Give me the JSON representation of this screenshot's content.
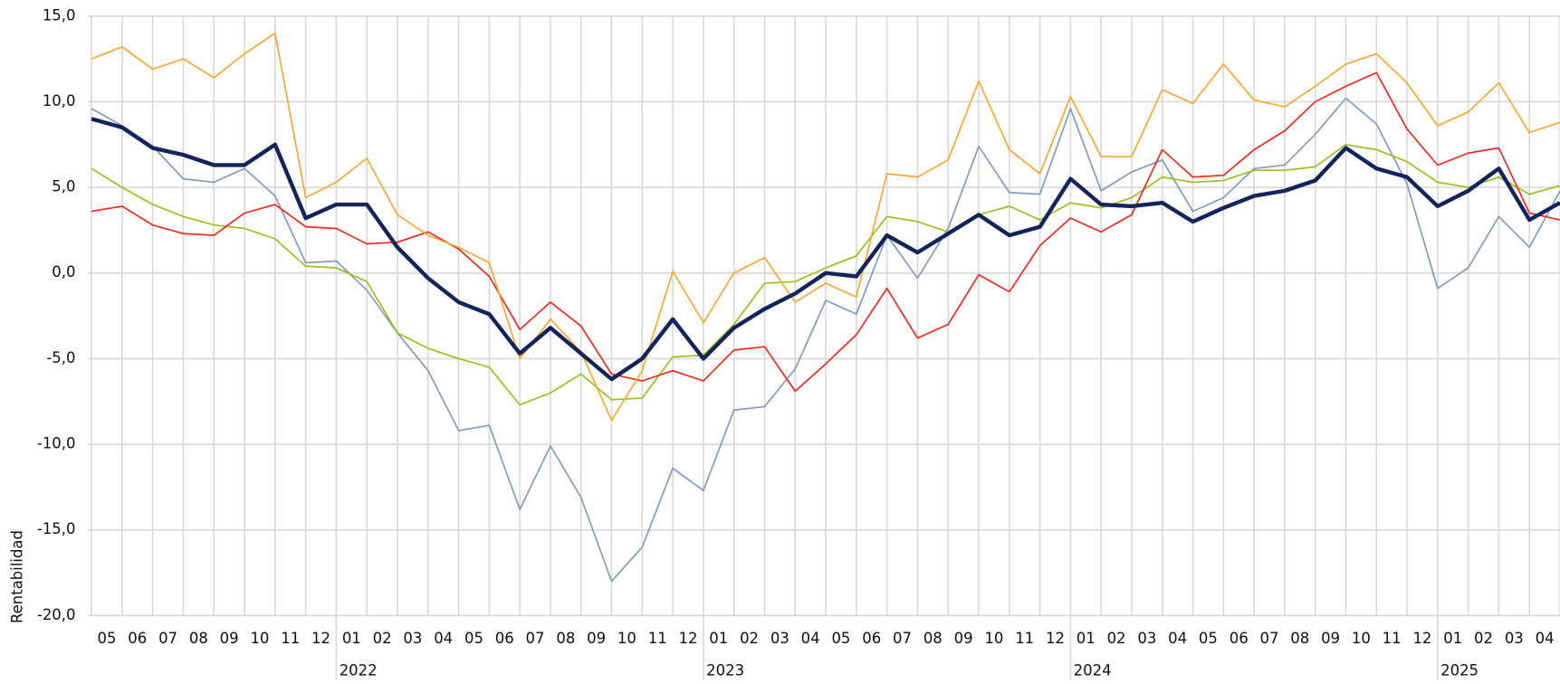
{
  "chart_data": {
    "type": "line",
    "y_label": "Rentabilidad",
    "categories": [
      "05",
      "06",
      "07",
      "08",
      "09",
      "10",
      "11",
      "12",
      "01",
      "02",
      "03",
      "04",
      "05",
      "06",
      "07",
      "08",
      "09",
      "10",
      "11",
      "12",
      "01",
      "02",
      "03",
      "04",
      "05",
      "06",
      "07",
      "08",
      "09",
      "10",
      "11",
      "12",
      "01",
      "02",
      "03",
      "04",
      "05",
      "06",
      "07",
      "08",
      "09",
      "10",
      "11",
      "12",
      "01",
      "02",
      "03",
      "04",
      null
    ],
    "years": [
      "2022",
      "2023",
      "2024",
      "2025"
    ],
    "ylim": [
      -20,
      15
    ],
    "yticks": [
      {
        "value": -20,
        "label": "-20,0"
      },
      {
        "value": -15,
        "label": "-15,0"
      },
      {
        "value": -10,
        "label": "-10,0"
      },
      {
        "value": -5,
        "label": "-5,0"
      },
      {
        "value": 0,
        "label": "0,0"
      },
      {
        "value": 5,
        "label": "5,0"
      },
      {
        "value": 10,
        "label": "10,0"
      },
      {
        "value": 15,
        "label": "15,0"
      }
    ],
    "grid": true,
    "series": [
      {
        "color": "#7f9abd",
        "width": 1.5,
        "values": [
          9.6,
          8.6,
          7.4,
          5.5,
          5.3,
          6.1,
          4.5,
          0.6,
          0.7,
          -1.0,
          -3.5,
          -5.7,
          -9.2,
          -8.9,
          -13.8,
          -10.1,
          -13.1,
          -18.0,
          -16.0,
          -11.4,
          -12.7,
          -8.0,
          -7.8,
          -5.6,
          -1.6,
          -2.4,
          2.2,
          -0.3,
          2.6,
          7.4,
          4.7,
          4.6,
          9.6,
          4.8,
          5.9,
          6.6,
          3.6,
          4.4,
          6.1,
          6.3,
          8.1,
          10.2,
          8.7,
          5.2,
          -0.9,
          0.3,
          3.3,
          1.5,
          4.8
        ]
      },
      {
        "color": "#9cbd1c",
        "width": 1.5,
        "values": [
          6.1,
          5.0,
          4.0,
          3.3,
          2.8,
          2.6,
          2.0,
          0.4,
          0.3,
          -0.5,
          -3.5,
          -4.4,
          -5.0,
          -5.5,
          -7.7,
          -7.0,
          -5.9,
          -7.4,
          -7.3,
          -4.9,
          -4.8,
          -3.0,
          -0.6,
          -0.5,
          0.3,
          1.0,
          3.3,
          3.0,
          2.4,
          3.4,
          3.9,
          3.1,
          4.1,
          3.8,
          4.4,
          5.6,
          5.3,
          5.4,
          6.0,
          6.0,
          6.2,
          7.5,
          7.2,
          6.5,
          5.3,
          5.0,
          5.6,
          4.6,
          5.1
        ]
      },
      {
        "color": "#f0251c",
        "width": 1.5,
        "values": [
          3.6,
          3.9,
          2.8,
          2.3,
          2.2,
          3.5,
          4.0,
          2.7,
          2.6,
          1.7,
          1.8,
          2.4,
          1.4,
          -0.2,
          -3.3,
          -1.7,
          -3.1,
          -5.9,
          -6.3,
          -5.7,
          -6.3,
          -4.5,
          -4.3,
          -6.9,
          -5.3,
          -3.6,
          -0.9,
          -3.8,
          -3.0,
          -0.1,
          -1.1,
          1.6,
          3.2,
          2.4,
          3.4,
          7.2,
          5.6,
          5.7,
          7.2,
          8.3,
          10.0,
          10.9,
          11.7,
          8.4,
          6.3,
          7.0,
          7.3,
          3.5,
          3.1
        ]
      },
      {
        "color": "#f9a630",
        "width": 1.5,
        "values": [
          12.5,
          13.2,
          11.9,
          12.5,
          11.4,
          12.8,
          14.0,
          4.4,
          5.3,
          6.7,
          3.4,
          2.2,
          1.5,
          0.6,
          -5.0,
          -2.7,
          -4.6,
          -8.6,
          -5.7,
          0.1,
          -2.9,
          0.0,
          0.9,
          -1.7,
          -0.6,
          -1.4,
          5.8,
          5.6,
          6.6,
          11.2,
          7.2,
          5.8,
          10.3,
          6.8,
          6.8,
          10.7,
          9.9,
          12.2,
          10.1,
          9.7,
          10.9,
          12.2,
          12.8,
          11.1,
          8.6,
          9.4,
          11.1,
          8.2,
          8.8
        ]
      },
      {
        "color": "#13245a",
        "width": 4,
        "values": [
          9.0,
          8.5,
          7.3,
          6.9,
          6.3,
          6.3,
          7.5,
          3.2,
          4.0,
          4.0,
          1.5,
          -0.3,
          -1.7,
          -2.4,
          -4.7,
          -3.2,
          -4.7,
          -6.2,
          -5.0,
          -2.7,
          -5.0,
          -3.2,
          -2.1,
          -1.2,
          0.0,
          -0.2,
          2.2,
          1.2,
          2.3,
          3.4,
          2.2,
          2.7,
          5.5,
          4.0,
          3.9,
          4.1,
          3.0,
          3.8,
          4.5,
          4.8,
          5.4,
          7.3,
          6.1,
          5.6,
          3.9,
          4.8,
          6.1,
          3.1,
          4.1
        ]
      }
    ]
  }
}
